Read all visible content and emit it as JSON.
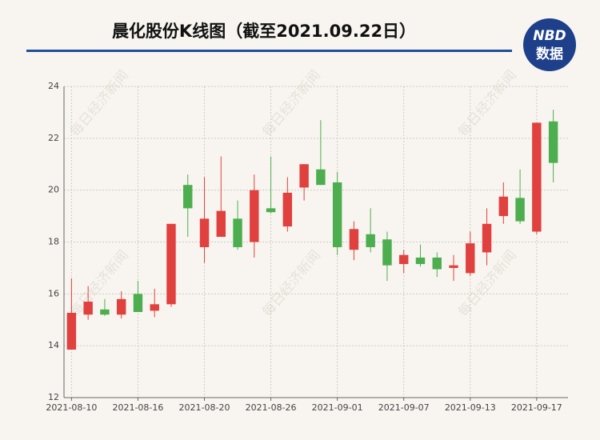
{
  "header": {
    "logo_top": "NBD",
    "logo_bottom": "数据",
    "watermark": "每日经济新闻"
  },
  "chart_data": {
    "type": "candlestick",
    "title": "晨化股份K线图（截至2021.09.22日）",
    "categories": [
      "2021-08-10",
      null,
      null,
      null,
      "2021-08-16",
      null,
      null,
      null,
      "2021-08-20",
      null,
      null,
      null,
      "2021-08-26",
      null,
      null,
      null,
      "2021-09-01",
      null,
      null,
      null,
      "2021-09-07",
      null,
      null,
      null,
      "2021-09-13",
      null,
      null,
      null,
      "2021-09-17",
      null
    ],
    "open": [
      13.85,
      15.2,
      15.4,
      15.2,
      16.0,
      15.35,
      15.6,
      20.2,
      17.8,
      18.2,
      18.9,
      18.0,
      19.3,
      18.6,
      20.1,
      20.8,
      20.3,
      17.7,
      18.3,
      18.1,
      17.15,
      17.4,
      17.4,
      17.0,
      16.8,
      17.6,
      19.0,
      19.7,
      18.4,
      22.65
    ],
    "high": [
      16.6,
      16.3,
      15.8,
      16.1,
      16.5,
      16.2,
      18.7,
      20.6,
      20.5,
      21.3,
      19.6,
      20.6,
      21.3,
      20.5,
      21.0,
      22.7,
      20.7,
      18.8,
      19.3,
      18.4,
      17.7,
      17.9,
      17.6,
      17.5,
      18.4,
      19.3,
      20.3,
      20.8,
      22.6,
      23.1
    ],
    "low": [
      13.85,
      15.0,
      15.15,
      15.05,
      15.3,
      15.1,
      15.5,
      18.2,
      17.2,
      18.2,
      17.7,
      17.4,
      19.1,
      18.4,
      19.6,
      20.2,
      17.5,
      17.3,
      17.6,
      16.5,
      16.8,
      17.05,
      16.65,
      16.5,
      16.7,
      17.1,
      18.7,
      18.7,
      18.3,
      20.3
    ],
    "close": [
      15.27,
      15.7,
      15.2,
      15.8,
      15.3,
      15.6,
      18.7,
      19.3,
      18.9,
      19.2,
      17.8,
      20.0,
      19.15,
      19.9,
      21.0,
      20.2,
      17.8,
      18.5,
      17.8,
      17.1,
      17.5,
      17.15,
      16.95,
      17.1,
      17.95,
      18.7,
      19.75,
      18.8,
      22.6,
      21.05
    ],
    "up_color": "#e0403e",
    "down_color": "#4cae4f",
    "ylim": [
      12,
      24
    ],
    "yticks": [
      12,
      14,
      16,
      18,
      20,
      22,
      24
    ],
    "grid": true
  }
}
